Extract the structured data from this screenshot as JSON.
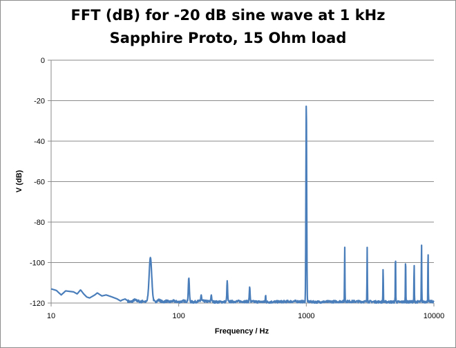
{
  "chart_data": {
    "type": "line",
    "title_line1": "FFT (dB) for -20 dB sine wave at 1 kHz",
    "title_line2": "Sapphire Proto, 15 Ohm load",
    "xlabel": "Frequency / Hz",
    "ylabel": "V (dB)",
    "xscale": "log",
    "xlim": [
      10,
      10000
    ],
    "ylim": [
      -120,
      0
    ],
    "x_ticks": [
      10,
      100,
      1000,
      10000
    ],
    "x_tick_labels": [
      "10",
      "100",
      "1000",
      "10000"
    ],
    "y_ticks": [
      0,
      -20,
      -40,
      -60,
      -80,
      -100,
      -120
    ],
    "y_tick_labels": [
      "0",
      "-20",
      "-40",
      "-60",
      "-80",
      "-100",
      "-120"
    ],
    "grid": "horizontal major",
    "legend": "none",
    "line_color": "#4a7ebb",
    "floor_points": [
      [
        10,
        -113
      ],
      [
        11,
        -113.8
      ],
      [
        12,
        -116
      ],
      [
        13,
        -114
      ],
      [
        15,
        -114.5
      ],
      [
        16,
        -115.5
      ],
      [
        17,
        -113.5
      ],
      [
        18,
        -115.5
      ],
      [
        19,
        -117
      ],
      [
        20,
        -117.5
      ],
      [
        22,
        -116
      ],
      [
        23,
        -115
      ],
      [
        25,
        -116.5
      ],
      [
        27,
        -116
      ],
      [
        30,
        -117
      ],
      [
        33,
        -118
      ],
      [
        35,
        -119
      ],
      [
        36,
        -118.5
      ],
      [
        38,
        -118
      ],
      [
        40,
        -119
      ],
      [
        42,
        -119.5
      ],
      [
        45,
        -118.5
      ],
      [
        48,
        -119
      ],
      [
        50,
        -119.5
      ],
      [
        53,
        -119
      ],
      [
        55,
        -119.5
      ],
      [
        62,
        -119
      ],
      [
        65,
        -119.5
      ],
      [
        70,
        -118.5
      ],
      [
        75,
        -119.5
      ],
      [
        80,
        -119
      ],
      [
        85,
        -119.5
      ],
      [
        90,
        -119
      ],
      [
        100,
        -119.5
      ],
      [
        110,
        -119
      ],
      [
        130,
        -119.5
      ],
      [
        150,
        -119
      ],
      [
        200,
        -119.5
      ],
      [
        300,
        -119.2
      ],
      [
        500,
        -119.5
      ],
      [
        800,
        -119.2
      ],
      [
        1200,
        -119.5
      ],
      [
        2000,
        -119.2
      ],
      [
        5000,
        -119.5
      ],
      [
        10000,
        -119.3
      ]
    ],
    "peaks": [
      {
        "freq": 60,
        "level": -97.5,
        "width": 0.01
      },
      {
        "freq": 120,
        "level": -107.5,
        "width": 0.004
      },
      {
        "freq": 150,
        "level": -116,
        "width": 0.003
      },
      {
        "freq": 180,
        "level": -116,
        "width": 0.003
      },
      {
        "freq": 240,
        "level": -109,
        "width": 0.003
      },
      {
        "freq": 360,
        "level": -112,
        "width": 0.003
      },
      {
        "freq": 480,
        "level": -116,
        "width": 0.002
      },
      {
        "freq": 1000,
        "level": -20,
        "width": 0.003
      },
      {
        "freq": 2000,
        "level": -91.5,
        "width": 0.0015
      },
      {
        "freq": 3000,
        "level": -92.5,
        "width": 0.0015
      },
      {
        "freq": 4000,
        "level": -102,
        "width": 0.0015
      },
      {
        "freq": 5000,
        "level": -94,
        "width": 0.0015
      },
      {
        "freq": 6000,
        "level": -96,
        "width": 0.0015
      },
      {
        "freq": 7000,
        "level": -100,
        "width": 0.0015
      },
      {
        "freq": 8000,
        "level": -90,
        "width": 0.0015
      },
      {
        "freq": 9000,
        "level": -93,
        "width": 0.0015
      }
    ]
  }
}
